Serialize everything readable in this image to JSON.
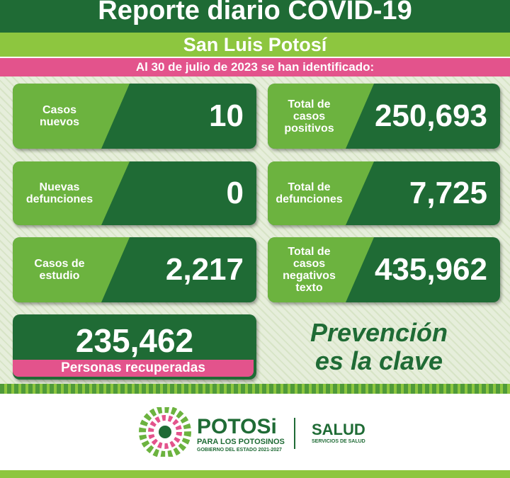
{
  "header": {
    "title": "Reporte diario COVID-19",
    "subtitle": "San Luis Potosí",
    "date_line": "Al 30 de julio de 2023 se han identificado:"
  },
  "cards": [
    {
      "label": [
        "Casos",
        "nuevos"
      ],
      "value": "10"
    },
    {
      "label": [
        "Total de",
        "casos",
        "positivos"
      ],
      "value": "250,693"
    },
    {
      "label": [
        "Nuevas",
        "defunciones"
      ],
      "value": "0"
    },
    {
      "label": [
        "Total de",
        "defunciones"
      ],
      "value": "7,725"
    },
    {
      "label": [
        "Casos de",
        "estudio"
      ],
      "value": "2,217"
    },
    {
      "label": [
        "Total de",
        "casos",
        "negativos",
        "texto"
      ],
      "value": "435,962"
    }
  ],
  "recovered": {
    "value": "235,462",
    "label": "Personas recuperadas"
  },
  "slogan": [
    "Prevención",
    "es la clave"
  ],
  "footer": {
    "brand": "POTOSi",
    "tagline": "PARA LOS POTOSINOS",
    "government": "GOBIERNO DEL ESTADO 2021-2027",
    "agency": "SALUD",
    "agency_subtitle": "SERVICIOS DE SALUD"
  }
}
